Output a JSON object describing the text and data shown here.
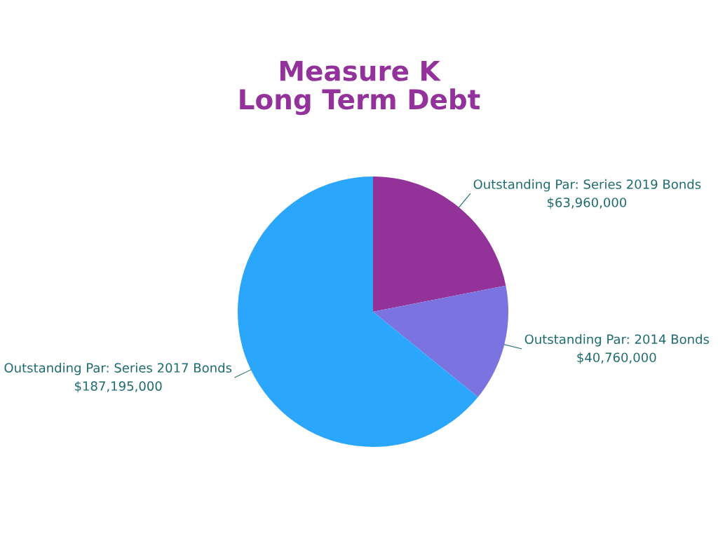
{
  "chart_data": {
    "type": "pie",
    "title": "Measure K\nLong Term Debt",
    "categories": [
      "Outstanding Par: Series 2019 Bonds",
      "Outstanding Par: 2014 Bonds",
      "Outstanding Par: Series 2017 Bonds"
    ],
    "values": [
      63960000,
      40760000,
      187195000
    ],
    "value_labels": [
      "$63,960,000",
      "$40,760,000",
      "$187,195,000"
    ],
    "colors": [
      "#933399",
      "#7b73e0",
      "#2aa7fd"
    ],
    "legend": false
  }
}
